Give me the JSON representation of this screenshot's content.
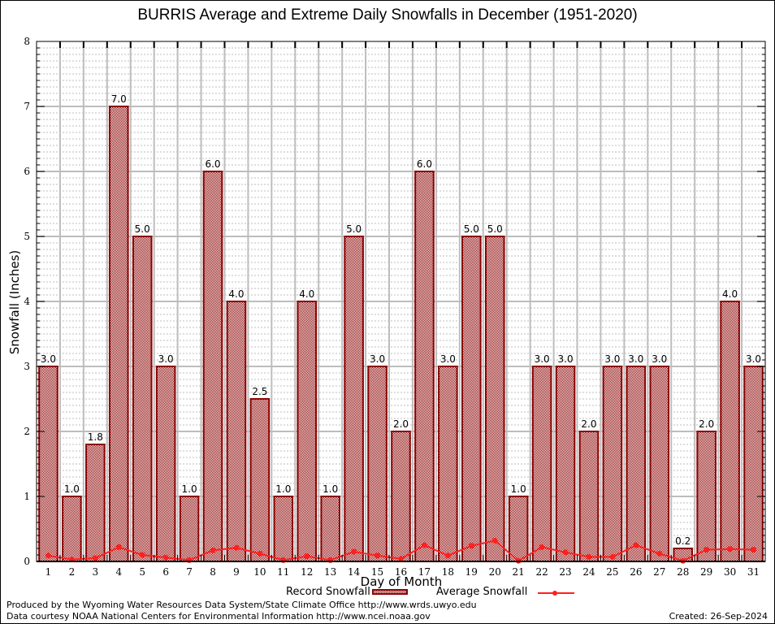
{
  "chart_data": {
    "type": "bar",
    "title": "BURRIS Average and Extreme Daily Snowfalls in December (1951-2020)",
    "xlabel": "Day of Month",
    "ylabel": "Snowfall (Inches)",
    "ylim": [
      0,
      8
    ],
    "yticks": [
      "0",
      "1",
      "2",
      "3",
      "4",
      "5",
      "6",
      "7",
      "8"
    ],
    "grid": true,
    "categories": [
      "1",
      "2",
      "3",
      "4",
      "5",
      "6",
      "7",
      "8",
      "9",
      "10",
      "11",
      "12",
      "13",
      "14",
      "15",
      "16",
      "17",
      "18",
      "19",
      "20",
      "21",
      "22",
      "23",
      "24",
      "25",
      "26",
      "27",
      "28",
      "29",
      "30",
      "31"
    ],
    "series": [
      {
        "name": "Record Snowfall",
        "kind": "bar",
        "color": "#8b0000",
        "values": [
          3.0,
          1.0,
          1.8,
          7.0,
          5.0,
          3.0,
          1.0,
          6.0,
          4.0,
          2.5,
          1.0,
          4.0,
          1.0,
          5.0,
          3.0,
          2.0,
          6.0,
          3.0,
          5.0,
          5.0,
          1.0,
          3.0,
          3.0,
          2.0,
          3.0,
          3.0,
          3.0,
          0.2,
          2.0,
          4.0,
          3.0
        ],
        "labels": [
          "3.0",
          "1.0",
          "1.8",
          "7.0",
          "5.0",
          "3.0",
          "1.0",
          "6.0",
          "4.0",
          "2.5",
          "1.0",
          "4.0",
          "1.0",
          "5.0",
          "3.0",
          "2.0",
          "6.0",
          "3.0",
          "5.0",
          "5.0",
          "1.0",
          "3.0",
          "3.0",
          "2.0",
          "3.0",
          "3.0",
          "3.0",
          "0.2",
          "2.0",
          "4.0",
          "3.0"
        ]
      },
      {
        "name": "Average Snowfall",
        "kind": "line",
        "color": "#ff2020",
        "values": [
          0.09,
          0.03,
          0.05,
          0.22,
          0.1,
          0.06,
          0.02,
          0.17,
          0.21,
          0.12,
          0.02,
          0.08,
          0.02,
          0.15,
          0.09,
          0.04,
          0.25,
          0.09,
          0.24,
          0.32,
          0.01,
          0.22,
          0.14,
          0.07,
          0.07,
          0.25,
          0.12,
          0.01,
          0.18,
          0.19,
          0.18
        ]
      }
    ],
    "legend": {
      "placement": "bottom-center",
      "record_label": "Record Snowfall",
      "average_label": "Average Snowfall"
    }
  },
  "footer": {
    "produced_by": "Produced by the Wyoming Water Resources Data System/State Climate Office http://www.wrds.uwyo.edu",
    "data_courtesy": "Data courtesy NOAA National Centers for Environmental Information http://www.ncei.noaa.gov",
    "created": "Created:  26-Sep-2024"
  }
}
